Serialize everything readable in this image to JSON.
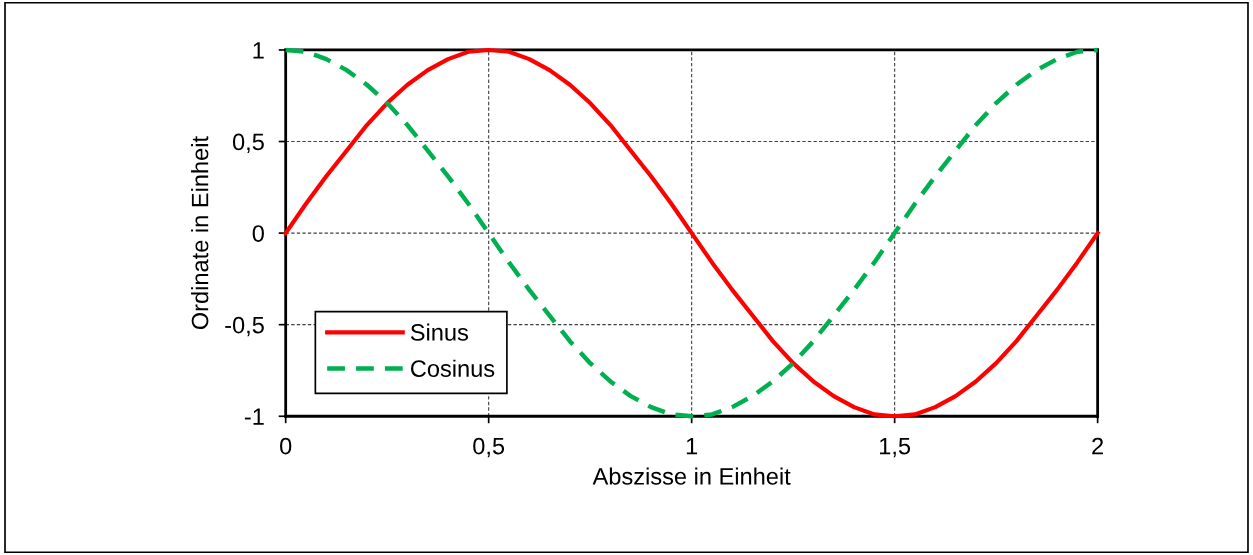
{
  "chart_data": {
    "type": "line",
    "xlabel": "Abszisse in Einheit",
    "ylabel": "Ordinate in Einheit",
    "x": [
      0,
      0.05,
      0.1,
      0.15,
      0.2,
      0.25,
      0.3,
      0.35,
      0.4,
      0.45,
      0.5,
      0.55,
      0.6,
      0.65,
      0.7,
      0.75,
      0.8,
      0.85,
      0.9,
      0.95,
      1,
      1.05,
      1.1,
      1.15,
      1.2,
      1.25,
      1.3,
      1.35,
      1.4,
      1.45,
      1.5,
      1.55,
      1.6,
      1.65,
      1.7,
      1.75,
      1.8,
      1.85,
      1.9,
      1.95,
      2
    ],
    "series": [
      {
        "name": "Sinus",
        "color": "#ff0000",
        "line_style": "solid",
        "values": [
          0,
          0.16,
          0.31,
          0.45,
          0.59,
          0.71,
          0.81,
          0.89,
          0.95,
          0.99,
          1,
          0.99,
          0.95,
          0.89,
          0.81,
          0.71,
          0.59,
          0.45,
          0.31,
          0.16,
          0,
          -0.16,
          -0.31,
          -0.45,
          -0.59,
          -0.71,
          -0.81,
          -0.89,
          -0.95,
          -0.99,
          -1,
          -0.99,
          -0.95,
          -0.89,
          -0.81,
          -0.71,
          -0.59,
          -0.45,
          -0.31,
          -0.16,
          0
        ]
      },
      {
        "name": "Cosinus",
        "color": "#00b050",
        "line_style": "dashed",
        "values": [
          1,
          0.99,
          0.95,
          0.89,
          0.81,
          0.71,
          0.59,
          0.45,
          0.31,
          0.16,
          0,
          -0.16,
          -0.31,
          -0.45,
          -0.59,
          -0.71,
          -0.81,
          -0.89,
          -0.95,
          -0.99,
          -1,
          -0.99,
          -0.95,
          -0.89,
          -0.81,
          -0.71,
          -0.59,
          -0.45,
          -0.31,
          -0.16,
          0,
          0.16,
          0.31,
          0.45,
          0.59,
          0.71,
          0.81,
          0.89,
          0.95,
          0.99,
          1
        ]
      }
    ],
    "xlim": [
      0,
      2
    ],
    "xticks": [
      {
        "value": 0,
        "label": "0"
      },
      {
        "value": 0.5,
        "label": "0,5"
      },
      {
        "value": 1,
        "label": "1"
      },
      {
        "value": 1.5,
        "label": "1,5"
      },
      {
        "value": 2,
        "label": "2"
      }
    ],
    "ylim": [
      -1,
      1
    ],
    "yticks": [
      {
        "value": -1,
        "label": "-1"
      },
      {
        "value": -0.5,
        "label": "-0,5"
      },
      {
        "value": 0,
        "label": "0"
      },
      {
        "value": 0.5,
        "label": "0,5"
      },
      {
        "value": 1,
        "label": "1"
      }
    ],
    "grid": true,
    "legend": "bottom left",
    "marker": "none"
  }
}
